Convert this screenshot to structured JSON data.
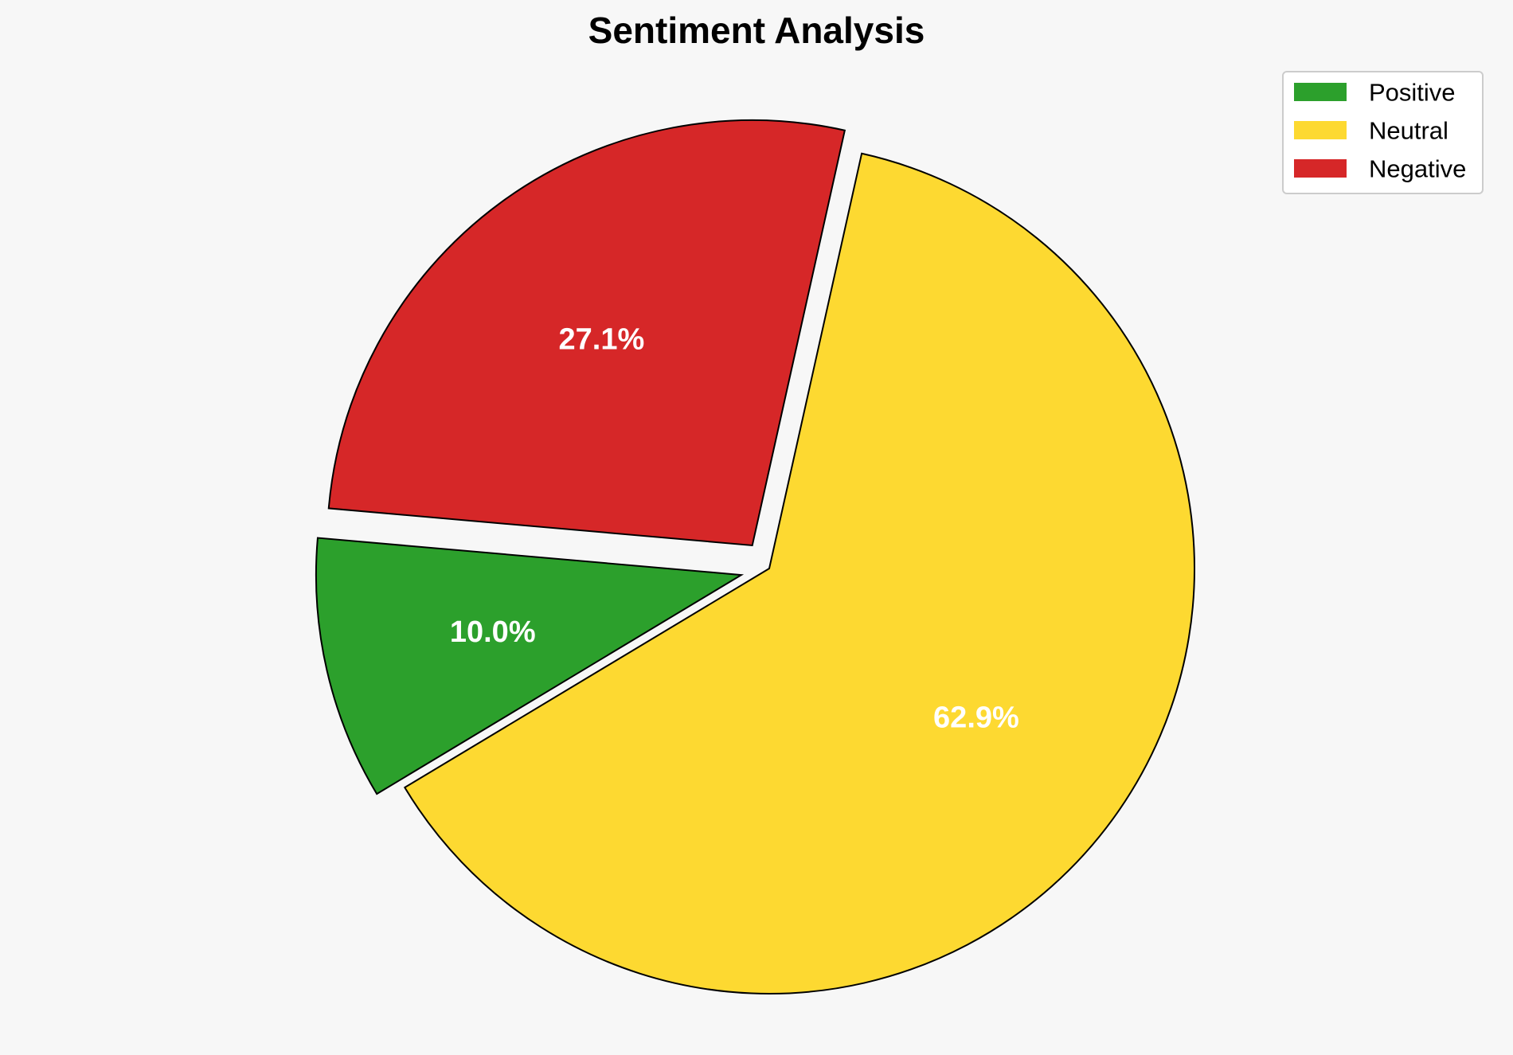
{
  "chart_data": {
    "type": "pie",
    "title": "Sentiment Analysis",
    "slices": [
      {
        "label": "Positive",
        "value": 10.0,
        "pct_label": "10.0%",
        "color": "#2ca02c",
        "exploded": true
      },
      {
        "label": "Neutral",
        "value": 62.9,
        "pct_label": "62.9%",
        "color": "#fdd931",
        "exploded": false
      },
      {
        "label": "Negative",
        "value": 27.1,
        "pct_label": "27.1%",
        "color": "#d62728",
        "exploded": true
      }
    ],
    "legend_position": "top-right",
    "edge_color": "#000000",
    "label_color": "#ffffff"
  }
}
